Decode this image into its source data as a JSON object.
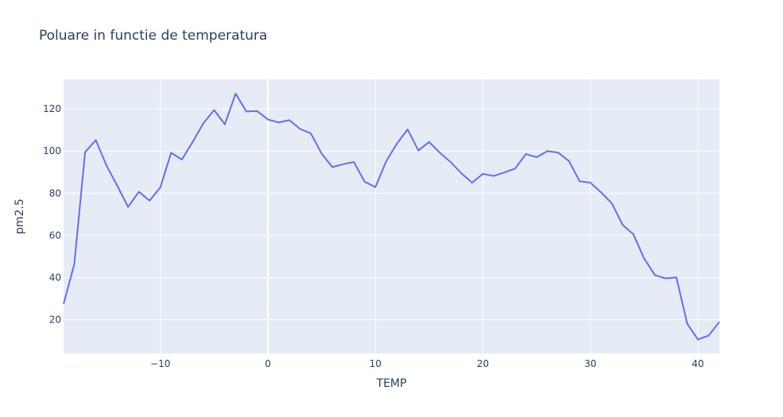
{
  "chart_data": {
    "type": "line",
    "title": "Poluare in functie de temperatura",
    "xlabel": "TEMP",
    "ylabel": "pm2.5",
    "xlim": [
      -19,
      42
    ],
    "ylim": [
      4,
      134
    ],
    "x_ticks": [
      -10,
      0,
      10,
      20,
      30,
      40
    ],
    "x_tick_labels": [
      "−10",
      "0",
      "10",
      "20",
      "30",
      "40"
    ],
    "y_ticks": [
      20,
      40,
      60,
      80,
      100,
      120
    ],
    "y_tick_labels": [
      "20",
      "40",
      "60",
      "80",
      "100",
      "120"
    ],
    "grid": true,
    "legend": "none",
    "colors": {
      "line": "#636efa",
      "plot_bg": "#e5ecf6",
      "grid": "#ffffff",
      "text": "#2a3f5f"
    },
    "series": [
      {
        "x": [
          -19,
          -18,
          -17,
          -16,
          -15,
          -14,
          -13,
          -12,
          -11,
          -10,
          -9,
          -8,
          -7,
          -6,
          -5,
          -4,
          -3,
          -2,
          -1,
          0,
          1,
          2,
          3,
          4,
          5,
          6,
          7,
          8,
          9,
          10,
          11,
          12,
          13,
          14,
          15,
          16,
          17,
          18,
          19,
          20,
          21,
          22,
          23,
          24,
          25,
          26,
          27,
          28,
          29,
          30,
          31,
          32,
          33,
          34,
          35,
          36,
          37,
          38,
          39,
          40,
          41,
          42
        ],
        "y": [
          27.5,
          46.5,
          99.5,
          105.2,
          93,
          83.5,
          73.5,
          80.7,
          76.5,
          82.8,
          99.2,
          96,
          104.3,
          113.2,
          119.5,
          112.7,
          127.3,
          118.8,
          119,
          115,
          113.6,
          114.7,
          110.5,
          108.4,
          98.8,
          92.4,
          93.8,
          94.8,
          85.5,
          82.9,
          95.1,
          103.5,
          110.3,
          100.3,
          104.3,
          99.2,
          94.8,
          89.5,
          85,
          89.2,
          88.2,
          89.9,
          91.7,
          98.6,
          97.1,
          100,
          99.3,
          95.3,
          85.7,
          85,
          80.4,
          75.2,
          65,
          60.5,
          49,
          41.2,
          39.6,
          40.1,
          18.2,
          10.6,
          12.5,
          19
        ]
      }
    ]
  }
}
